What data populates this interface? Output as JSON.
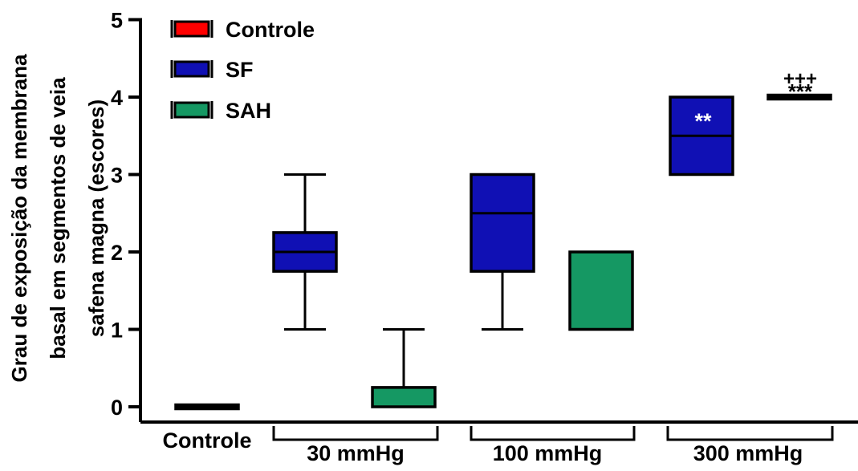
{
  "chart_data": {
    "type": "box",
    "ylabel_lines": [
      "Grau de exposição da membrana",
      "basal em segmentos de veia",
      "safena magna (escores)"
    ],
    "ylim": [
      0,
      5
    ],
    "yticks": [
      "0",
      "1",
      "2",
      "3",
      "4",
      "5"
    ],
    "legend": [
      {
        "name": "Controle",
        "color": "#ff0000"
      },
      {
        "name": "SF",
        "color": "#1010b4"
      },
      {
        "name": "SAH",
        "color": "#159863"
      }
    ],
    "groups": [
      {
        "label": "Controle"
      },
      {
        "label": "30 mmHg"
      },
      {
        "label": "100 mmHg"
      },
      {
        "label": "300 mmHg"
      }
    ],
    "boxes": [
      {
        "series": "Controle",
        "group": "Controle",
        "min": 0,
        "q1": 0,
        "median": 0,
        "q3": 0,
        "max": 0
      },
      {
        "series": "SF",
        "group": "30 mmHg",
        "min": 1,
        "q1": 1.75,
        "median": 2,
        "q3": 2.25,
        "max": 3
      },
      {
        "series": "SAH",
        "group": "30 mmHg",
        "min": 0,
        "q1": 0,
        "median": 0,
        "q3": 0.25,
        "max": 1
      },
      {
        "series": "SF",
        "group": "100 mmHg",
        "min": 1,
        "q1": 1.75,
        "median": 2.5,
        "q3": 3,
        "max": 3
      },
      {
        "series": "SAH",
        "group": "100 mmHg",
        "min": 1,
        "q1": 1,
        "median": 2,
        "q3": 2,
        "max": 2
      },
      {
        "series": "SF",
        "group": "300 mmHg",
        "min": 3,
        "q1": 3,
        "median": 3.5,
        "q3": 4,
        "max": 4
      },
      {
        "series": "SAH",
        "group": "300 mmHg",
        "min": 4,
        "q1": 4,
        "median": 4,
        "q3": 4,
        "max": 4
      }
    ],
    "annotations": [
      {
        "text": "**",
        "target": "SF 300 mmHg"
      },
      {
        "text": "+++",
        "target": "SAH 300 mmHg"
      },
      {
        "text": "***",
        "target": "SAH 300 mmHg"
      }
    ]
  }
}
